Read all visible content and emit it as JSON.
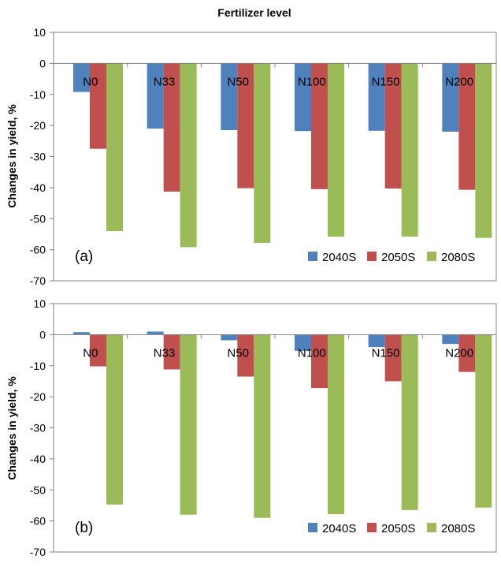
{
  "figure_title": "Fertilizer level",
  "colors": {
    "2040S": "#4F81BD",
    "2050S": "#C0504D",
    "2080S": "#9BBB59",
    "axis": "#808080",
    "text": "#000000"
  },
  "chart_data": [
    {
      "type": "bar",
      "panel_label": "(a)",
      "ylabel": "Changes in yield, %",
      "ylim": [
        -70,
        10
      ],
      "yticks": [
        10,
        0,
        -10,
        -20,
        -30,
        -40,
        -50,
        -60,
        -70
      ],
      "categories": [
        "N0",
        "N33",
        "N50",
        "N100",
        "N150",
        "N200"
      ],
      "series": [
        {
          "name": "2040S",
          "values": [
            -9.2,
            -21.0,
            -21.5,
            -21.8,
            -21.7,
            -22.0
          ]
        },
        {
          "name": "2050S",
          "values": [
            -27.5,
            -41.3,
            -40.2,
            -40.5,
            -40.3,
            -40.7
          ]
        },
        {
          "name": "2080S",
          "values": [
            -54.0,
            -59.2,
            -57.8,
            -55.8,
            -55.8,
            -56.2
          ]
        }
      ],
      "legend": [
        "2040S",
        "2050S",
        "2080S"
      ],
      "legend_position": "bottom-right",
      "grid": false
    },
    {
      "type": "bar",
      "panel_label": "(b)",
      "ylabel": "Changes in yield, %",
      "ylim": [
        -70,
        10
      ],
      "yticks": [
        10,
        0,
        -10,
        -20,
        -30,
        -40,
        -50,
        -60,
        -70
      ],
      "categories": [
        "N0",
        "N33",
        "N50",
        "N100",
        "N150",
        "N200"
      ],
      "series": [
        {
          "name": "2040S",
          "values": [
            0.8,
            1.0,
            -1.8,
            -5.2,
            -4.0,
            -3.0
          ]
        },
        {
          "name": "2050S",
          "values": [
            -10.2,
            -11.2,
            -13.5,
            -17.2,
            -15.0,
            -12.0
          ]
        },
        {
          "name": "2080S",
          "values": [
            -54.7,
            -58.0,
            -59.0,
            -57.8,
            -56.5,
            -55.7
          ]
        }
      ],
      "legend": [
        "2040S",
        "2050S",
        "2080S"
      ],
      "legend_position": "bottom-right",
      "grid": false
    }
  ]
}
